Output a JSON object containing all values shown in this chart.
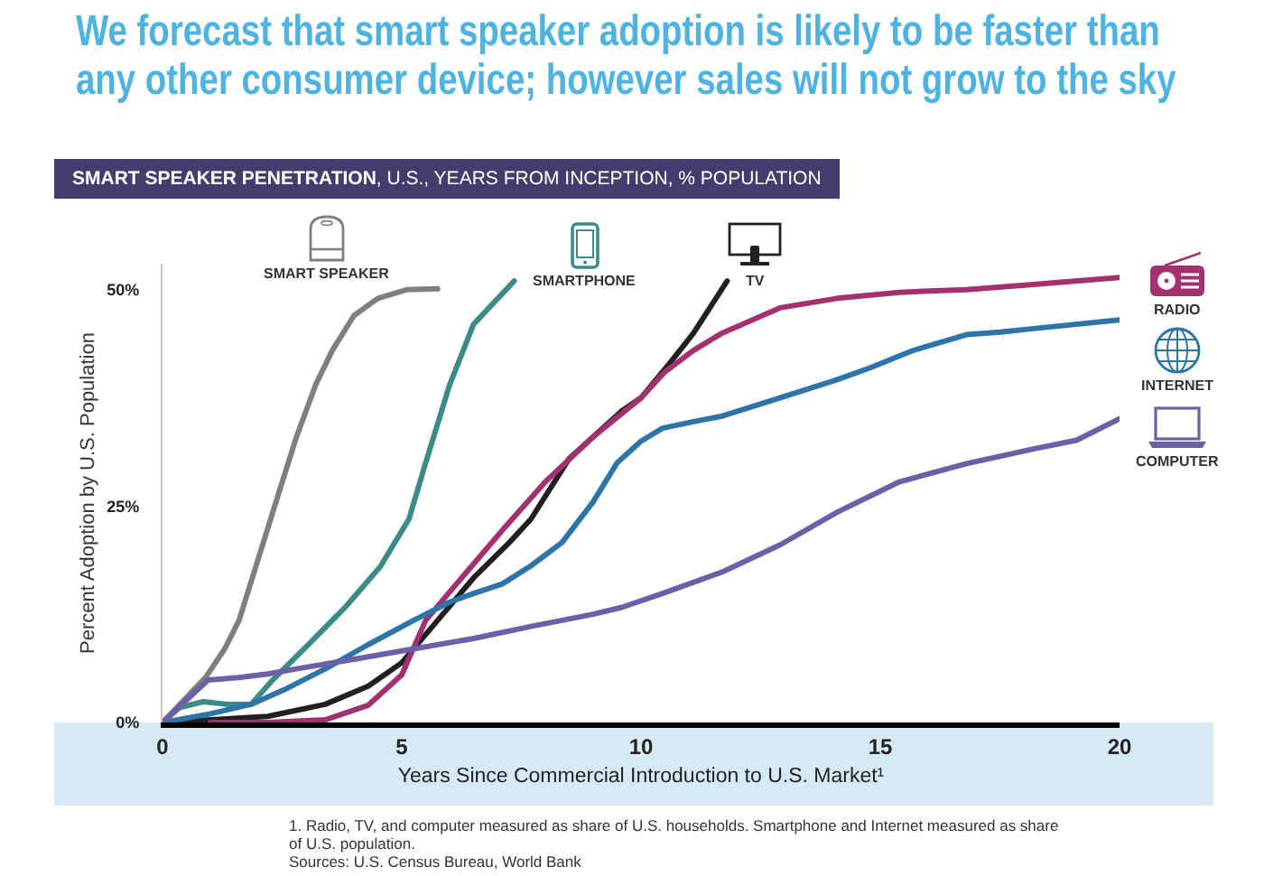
{
  "chart_data": {
    "type": "line",
    "title": "We forecast that smart speaker adoption is likely to be faster than any other consumer device; however sales will not grow to the sky",
    "subtitle": "SMART SPEAKER PENETRATION, U.S., YEARS FROM INCEPTION, % POPULATION",
    "xlabel": "Years Since Commercial Introduction to U.S. Market¹",
    "ylabel": "Percent Adoption by U.S. Population",
    "annotations": [
      "1. Radio, TV, and computer measured as share of U.S. households. Smartphone and Internet measured as share of U.S. population.",
      "Sources: U.S. Census Bureau, World Bank"
    ],
    "legend": "top right",
    "xlim": [
      0,
      20
    ],
    "xticks": [
      0,
      5,
      10,
      15,
      20
    ],
    "ylim": [
      0,
      53
    ],
    "yticks": [
      {
        "value": 0,
        "label": "0%"
      },
      {
        "value": 25,
        "label": "25%"
      },
      {
        "value": 50,
        "label": "50%"
      }
    ],
    "series": [
      {
        "name": "SMART SPEAKER",
        "color": "#7f7f7f",
        "x": [
          0,
          0.9,
          1.3,
          1.6,
          1.95,
          2.4,
          2.8,
          3.2,
          3.55,
          4.0,
          4.5,
          5.1,
          5.75
        ],
        "values": [
          0,
          5.2,
          8.5,
          11.8,
          18,
          26,
          33,
          39,
          43,
          47,
          49,
          50,
          50.1
        ]
      },
      {
        "name": "SMARTPHONE",
        "color": "#3b8b87",
        "x": [
          0,
          0.35,
          0.85,
          1.35,
          1.85,
          2.3,
          3.05,
          3.8,
          4.55,
          5.15,
          5.5,
          6.0,
          6.5,
          7.35
        ],
        "values": [
          0,
          1.7,
          2.4,
          2.1,
          2.1,
          4.9,
          9,
          13.2,
          18,
          23.5,
          30,
          39,
          46,
          51
        ]
      },
      {
        "name": "TV",
        "color": "#231f20",
        "x": [
          0,
          1,
          2.2,
          3.4,
          4.3,
          5.0,
          5.75,
          6.5,
          7.25,
          7.7,
          8.1,
          8.5,
          9.0,
          9.6,
          10.0,
          10.6,
          11.1,
          11.8
        ],
        "values": [
          0,
          0.3,
          0.7,
          2.1,
          4.2,
          6.9,
          11.8,
          16.7,
          20.8,
          23.5,
          27,
          30.5,
          33,
          36,
          37.5,
          41.5,
          45,
          51
        ]
      },
      {
        "name": "RADIO",
        "color": "#a3306f",
        "x": [
          1,
          2.2,
          3.4,
          4.3,
          5.0,
          5.5,
          6.25,
          7.1,
          8.0,
          9.0,
          10.0,
          10.5,
          11.1,
          11.7,
          12.9,
          14.1,
          15.4,
          16.8,
          18.2,
          20
        ],
        "values": [
          0,
          0,
          0.3,
          2,
          5.5,
          11.8,
          16.7,
          22.2,
          27.8,
          33,
          37.5,
          40.5,
          43,
          45,
          47.9,
          49,
          49.7,
          50,
          50.6,
          51.4
        ]
      },
      {
        "name": "INTERNET",
        "color": "#2d75a8",
        "x": [
          0,
          1,
          1.85,
          2.55,
          3.4,
          4.3,
          5.25,
          6.0,
          6.5,
          7.1,
          7.7,
          8.35,
          9.0,
          9.5,
          10.0,
          10.45,
          11.05,
          11.7,
          12.9,
          14.1,
          14.8,
          15.7,
          16.8,
          17.5,
          18.2,
          20
        ],
        "values": [
          0,
          1,
          2.1,
          3.8,
          6.2,
          9,
          11.8,
          13.9,
          14.9,
          16,
          18.1,
          20.8,
          25.5,
          30,
          32.5,
          34,
          34.7,
          35.4,
          37.5,
          39.6,
          41,
          43,
          44.8,
          45.1,
          45.5,
          46.5
        ]
      },
      {
        "name": "COMPUTER",
        "color": "#6d5fa7",
        "x": [
          0,
          0.95,
          1.6,
          2.2,
          2.8,
          4.0,
          5.25,
          6.5,
          7.7,
          9.0,
          9.6,
          10.45,
          11.7,
          12.9,
          14.1,
          15.4,
          16.8,
          18.2,
          19.1,
          20
        ],
        "values": [
          0,
          4.9,
          5.2,
          5.6,
          6.2,
          7.3,
          8.5,
          9.7,
          11.1,
          12.5,
          13.3,
          14.9,
          17.4,
          20.5,
          24.3,
          27.8,
          29.9,
          31.6,
          32.6,
          35.1
        ]
      }
    ]
  }
}
